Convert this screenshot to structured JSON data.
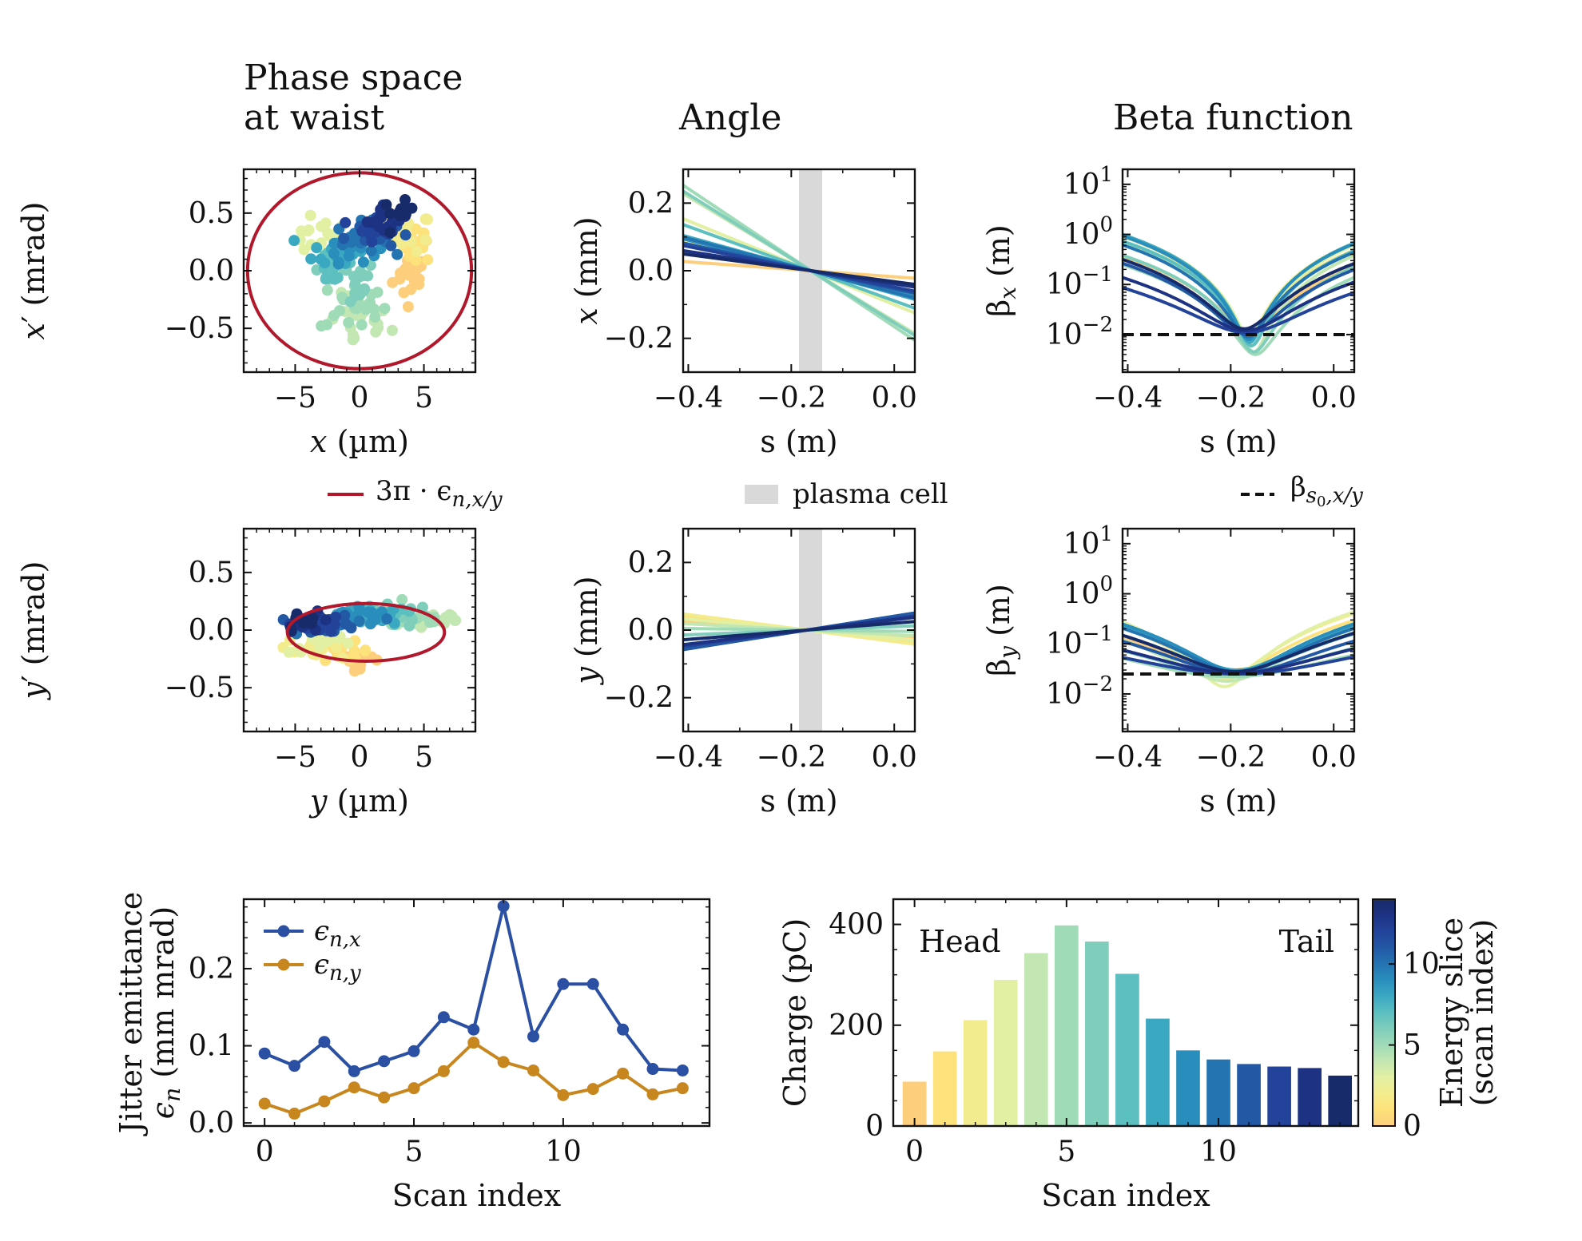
{
  "chart_data": [
    {
      "id": "phase_x",
      "type": "scatter",
      "title": "Phase space\nat waist",
      "xlabel": "x (µm)",
      "ylabel": "x′ (mrad)",
      "xlim": [
        -9,
        9
      ],
      "ylim": [
        -0.88,
        0.88
      ],
      "xticks": [
        -5,
        0,
        5
      ],
      "yticks": [
        -0.5,
        0.0,
        0.5
      ],
      "xtick_labels": [
        "−5",
        "0",
        "5"
      ],
      "ytick_labels": [
        "−0.5",
        "0.0",
        "0.5"
      ],
      "ellipse": {
        "center": [
          0,
          0
        ],
        "rx": 8.7,
        "ry": 0.85,
        "color": "#b2182b"
      },
      "clusters": [
        {
          "slice": 0,
          "center": [
            4.0,
            -0.05
          ],
          "spread": [
            0.7,
            0.1
          ],
          "n": 20
        },
        {
          "slice": 1,
          "center": [
            4.6,
            0.22
          ],
          "spread": [
            0.6,
            0.07
          ],
          "n": 18
        },
        {
          "slice": 2,
          "center": [
            3.8,
            0.33
          ],
          "spread": [
            0.9,
            0.08
          ],
          "n": 18
        },
        {
          "slice": 3,
          "center": [
            -2.8,
            0.28
          ],
          "spread": [
            1.6,
            0.08
          ],
          "n": 22
        },
        {
          "slice": 4,
          "center": [
            0.0,
            -0.45
          ],
          "spread": [
            1.2,
            0.12
          ],
          "n": 22
        },
        {
          "slice": 5,
          "center": [
            -0.5,
            -0.3
          ],
          "spread": [
            1.3,
            0.12
          ],
          "n": 22
        },
        {
          "slice": 6,
          "center": [
            -0.8,
            -0.1
          ],
          "spread": [
            1.1,
            0.1
          ],
          "n": 18
        },
        {
          "slice": 7,
          "center": [
            -1.8,
            0.05
          ],
          "spread": [
            0.9,
            0.1
          ],
          "n": 18
        },
        {
          "slice": 8,
          "center": [
            -1.6,
            0.17
          ],
          "spread": [
            1.0,
            0.08
          ],
          "n": 18
        },
        {
          "slice": 9,
          "center": [
            -0.6,
            0.22
          ],
          "spread": [
            1.0,
            0.07
          ],
          "n": 18
        },
        {
          "slice": 10,
          "center": [
            0.2,
            0.28
          ],
          "spread": [
            1.0,
            0.07
          ],
          "n": 18
        },
        {
          "slice": 11,
          "center": [
            0.8,
            0.33
          ],
          "spread": [
            1.0,
            0.07
          ],
          "n": 18
        },
        {
          "slice": 12,
          "center": [
            1.5,
            0.4
          ],
          "spread": [
            0.9,
            0.07
          ],
          "n": 16
        },
        {
          "slice": 13,
          "center": [
            2.2,
            0.45
          ],
          "spread": [
            0.8,
            0.07
          ],
          "n": 14
        },
        {
          "slice": 14,
          "center": [
            3.0,
            0.5
          ],
          "spread": [
            0.6,
            0.05
          ],
          "n": 10
        }
      ]
    },
    {
      "id": "angle_x",
      "type": "line",
      "title": "Angle",
      "xlabel": "s (m)",
      "ylabel": "x (mm)",
      "xlim": [
        -0.41,
        0.04
      ],
      "ylim": [
        -0.3,
        0.3
      ],
      "xticks": [
        -0.4,
        -0.2,
        0.0
      ],
      "yticks": [
        -0.2,
        0.0,
        0.2
      ],
      "xtick_labels": [
        "−0.4",
        "−0.2",
        "0.0"
      ],
      "ytick_labels": [
        "−0.2",
        "0.0",
        "0.2"
      ],
      "pivot_s": -0.162,
      "band": [
        -0.185,
        -0.14
      ],
      "slopes": [
        -0.11,
        -0.2,
        -0.35,
        -0.62,
        -0.92,
        -1.02,
        -0.95,
        -0.55,
        -0.42,
        -0.38,
        -0.4,
        -0.33,
        -0.3,
        -0.24,
        -0.2
      ]
    },
    {
      "id": "beta_x",
      "type": "line",
      "title": "Beta function",
      "xlabel": "s (m)",
      "ylabel": "βx (m)",
      "xlim": [
        -0.41,
        0.04
      ],
      "ylim_log10": [
        -2.75,
        1.3
      ],
      "xticks": [
        -0.4,
        -0.2,
        0.0
      ],
      "xtick_labels": [
        "−0.4",
        "−0.2",
        "0.0"
      ],
      "yticks": [
        {
          "base": "10",
          "exp": "1",
          "value": 10
        },
        {
          "base": "10",
          "exp": "0",
          "value": 1
        },
        {
          "base": "10",
          "exp": "−1",
          "value": 0.1
        },
        {
          "base": "10",
          "exp": "−2",
          "value": 0.01
        }
      ],
      "reference_beta": 0.01,
      "waist_s": [
        -0.162,
        -0.165,
        -0.168,
        -0.158,
        -0.155,
        -0.152,
        -0.155,
        -0.16,
        -0.163,
        -0.165,
        -0.166,
        -0.168,
        -0.17,
        -0.172,
        -0.174
      ],
      "waist_beta": [
        0.012,
        0.01,
        0.008,
        0.006,
        0.0045,
        0.004,
        0.0045,
        0.006,
        0.007,
        0.008,
        0.009,
        0.01,
        0.011,
        0.012,
        0.013
      ]
    },
    {
      "id": "phase_y",
      "type": "scatter",
      "xlabel": "y (µm)",
      "ylabel": "y′ (mrad)",
      "xlim": [
        -9,
        9
      ],
      "ylim": [
        -0.88,
        0.88
      ],
      "xticks": [
        -5,
        0,
        5
      ],
      "yticks": [
        -0.5,
        0.0,
        0.5
      ],
      "xtick_labels": [
        "−5",
        "0",
        "5"
      ],
      "ytick_labels": [
        "−0.5",
        "0.0",
        "0.5"
      ],
      "ellipse": {
        "center": [
          0.5,
          -0.02
        ],
        "rx": 6.1,
        "ry": 0.25,
        "color": "#b2182b"
      },
      "clusters": [
        {
          "slice": 0,
          "center": [
            0.0,
            -0.25
          ],
          "spread": [
            1.0,
            0.04
          ],
          "n": 16
        },
        {
          "slice": 1,
          "center": [
            -1.5,
            -0.18
          ],
          "spread": [
            1.2,
            0.04
          ],
          "n": 16
        },
        {
          "slice": 2,
          "center": [
            -4.0,
            -0.14
          ],
          "spread": [
            1.2,
            0.04
          ],
          "n": 16
        },
        {
          "slice": 3,
          "center": [
            -2.5,
            -0.1
          ],
          "spread": [
            1.5,
            0.05
          ],
          "n": 16
        },
        {
          "slice": 4,
          "center": [
            5.5,
            0.08
          ],
          "spread": [
            1.6,
            0.05
          ],
          "n": 18
        },
        {
          "slice": 5,
          "center": [
            4.0,
            0.1
          ],
          "spread": [
            1.6,
            0.05
          ],
          "n": 18
        },
        {
          "slice": 6,
          "center": [
            2.5,
            0.12
          ],
          "spread": [
            1.5,
            0.05
          ],
          "n": 18
        },
        {
          "slice": 7,
          "center": [
            1.5,
            0.13
          ],
          "spread": [
            1.5,
            0.04
          ],
          "n": 18
        },
        {
          "slice": 8,
          "center": [
            0.5,
            0.12
          ],
          "spread": [
            1.5,
            0.04
          ],
          "n": 18
        },
        {
          "slice": 9,
          "center": [
            -0.5,
            0.1
          ],
          "spread": [
            1.5,
            0.04
          ],
          "n": 18
        },
        {
          "slice": 10,
          "center": [
            -1.5,
            0.07
          ],
          "spread": [
            1.5,
            0.04
          ],
          "n": 18
        },
        {
          "slice": 11,
          "center": [
            -2.5,
            0.05
          ],
          "spread": [
            1.2,
            0.04
          ],
          "n": 16
        },
        {
          "slice": 12,
          "center": [
            -3.2,
            0.06
          ],
          "spread": [
            1.0,
            0.04
          ],
          "n": 14
        },
        {
          "slice": 13,
          "center": [
            -3.8,
            0.07
          ],
          "spread": [
            0.9,
            0.04
          ],
          "n": 12
        },
        {
          "slice": 14,
          "center": [
            -4.5,
            0.08
          ],
          "spread": [
            0.6,
            0.04
          ],
          "n": 10
        }
      ]
    },
    {
      "id": "angle_y",
      "type": "line",
      "xlabel": "s (m)",
      "ylabel": "y (mm)",
      "xlim": [
        -0.41,
        0.04
      ],
      "ylim": [
        -0.3,
        0.3
      ],
      "xticks": [
        -0.4,
        -0.2,
        0.0
      ],
      "yticks": [
        -0.2,
        0.0,
        0.2
      ],
      "xtick_labels": [
        "−0.4",
        "−0.2",
        "0.0"
      ],
      "ytick_labels": [
        "−0.2",
        "0.0",
        "0.2"
      ],
      "pivot_s": -0.17,
      "band": [
        -0.185,
        -0.14
      ],
      "slopes": [
        -0.12,
        -0.17,
        -0.2,
        -0.14,
        -0.08,
        -0.02,
        0.06,
        0.12,
        0.18,
        0.22,
        0.24,
        0.24,
        0.2,
        0.18,
        0.12
      ]
    },
    {
      "id": "beta_y",
      "type": "line",
      "xlabel": "s (m)",
      "ylabel": "βy (m)",
      "xlim": [
        -0.41,
        0.04
      ],
      "ylim_log10": [
        -2.75,
        1.3
      ],
      "xticks": [
        -0.4,
        -0.2,
        0.0
      ],
      "xtick_labels": [
        "−0.4",
        "−0.2",
        "0.0"
      ],
      "yticks": [
        {
          "base": "10",
          "exp": "1",
          "value": 10
        },
        {
          "base": "10",
          "exp": "0",
          "value": 1
        },
        {
          "base": "10",
          "exp": "−1",
          "value": 0.1
        },
        {
          "base": "10",
          "exp": "−2",
          "value": 0.01
        }
      ],
      "reference_beta": 0.025,
      "waist_s": [
        -0.2,
        -0.205,
        -0.21,
        -0.212,
        -0.208,
        -0.2,
        -0.195,
        -0.19,
        -0.188,
        -0.186,
        -0.185,
        -0.186,
        -0.188,
        -0.19,
        -0.192
      ],
      "waist_beta": [
        0.03,
        0.025,
        0.02,
        0.014,
        0.018,
        0.022,
        0.025,
        0.028,
        0.03,
        0.028,
        0.026,
        0.025,
        0.025,
        0.026,
        0.028
      ]
    },
    {
      "id": "emittance",
      "type": "line",
      "xlabel": "Scan index",
      "ylabel": [
        "Jitter emittance",
        "εn (mm mrad)"
      ],
      "xlim": [
        -0.7,
        14.9
      ],
      "ylim": [
        -0.004,
        0.29
      ],
      "xticks": [
        0,
        5,
        10
      ],
      "yticks": [
        0.0,
        0.1,
        0.2
      ],
      "xtick_labels": [
        "0",
        "5",
        "10"
      ],
      "ytick_labels": [
        "0.0",
        "0.1",
        "0.2"
      ],
      "x": [
        0,
        1,
        2,
        3,
        4,
        5,
        6,
        7,
        8,
        9,
        10,
        11,
        12,
        13,
        14
      ],
      "series": [
        {
          "name": "εn,x",
          "color": "#2a4fa3",
          "values": [
            0.09,
            0.074,
            0.105,
            0.067,
            0.08,
            0.093,
            0.137,
            0.121,
            0.281,
            0.112,
            0.18,
            0.18,
            0.121,
            0.07,
            0.068
          ]
        },
        {
          "name": "εn,y",
          "color": "#c8861f",
          "values": [
            0.025,
            0.012,
            0.028,
            0.046,
            0.033,
            0.045,
            0.067,
            0.104,
            0.079,
            0.068,
            0.036,
            0.044,
            0.064,
            0.037,
            0.045
          ]
        }
      ]
    },
    {
      "id": "charge",
      "type": "bar",
      "xlabel": "Scan index",
      "ylabel": "Charge (pC)",
      "xlim": [
        -0.7,
        14.6
      ],
      "ylim": [
        0,
        450
      ],
      "xticks": [
        0,
        5,
        10
      ],
      "yticks": [
        0,
        200,
        400
      ],
      "xtick_labels": [
        "0",
        "5",
        "10"
      ],
      "ytick_labels": [
        "0",
        "200",
        "400"
      ],
      "categories": [
        0,
        1,
        2,
        3,
        4,
        5,
        6,
        7,
        8,
        9,
        10,
        11,
        12,
        13,
        14
      ],
      "values": [
        88,
        148,
        210,
        290,
        343,
        398,
        366,
        302,
        213,
        150,
        132,
        123,
        118,
        115,
        100
      ],
      "annotations": [
        "Head",
        "Tail"
      ],
      "colorbar": {
        "label": [
          "Energy slice",
          "(scan index)"
        ],
        "ticks": [
          0,
          5,
          10
        ],
        "tick_labels": [
          "0",
          "5",
          "10"
        ],
        "range": [
          0,
          14
        ]
      }
    }
  ],
  "legends": {
    "ellipse": "3π · εn,x/y",
    "plasma": "plasma cell",
    "beta_ref": "βs0,x/y"
  },
  "colors": {
    "slices": [
      "#fdcf7d",
      "#fde17a",
      "#f3ec8e",
      "#e2f0a3",
      "#c3e7b2",
      "#a0dbb8",
      "#7fcdbb",
      "#5cbfc0",
      "#3ba8c2",
      "#2a8ebd",
      "#2574b2",
      "#2358a5",
      "#23439a",
      "#1d3283",
      "#172a69"
    ],
    "ellipse": "#b2182b",
    "band": "#d9d9d9",
    "eps_x": "#2a4fa3",
    "eps_y": "#c8861f"
  }
}
